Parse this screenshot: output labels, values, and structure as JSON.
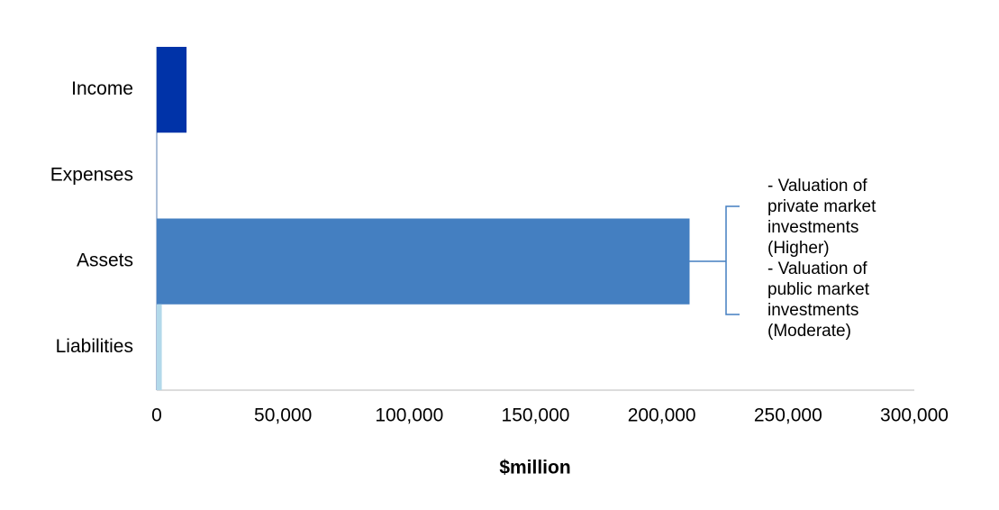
{
  "chart_data": {
    "type": "hbar",
    "categories": [
      "Income",
      "Expenses",
      "Assets",
      "Liabilities"
    ],
    "values": [
      11800,
      0,
      211000,
      2000
    ],
    "colors": [
      "#0033a8",
      "#8fa9cc",
      "#447fc1",
      "#b3d9ea"
    ],
    "xlabel": "$million",
    "xlim": [
      0,
      300000
    ],
    "xticks": [
      0,
      {
        "value": 50000,
        "label": "50,000"
      },
      {
        "value": 100000,
        "label": "100,000"
      },
      {
        "value": 150000,
        "label": "150,000"
      },
      {
        "value": 200000,
        "label": "200,000"
      },
      {
        "value": 250000,
        "label": "250,000"
      },
      {
        "value": 300000,
        "label": "300,000"
      }
    ],
    "annotation": [
      "- Valuation of",
      "private market",
      "investments",
      "(Higher)",
      "- Valuation of",
      "public market",
      "investments",
      "(Moderate)"
    ]
  }
}
